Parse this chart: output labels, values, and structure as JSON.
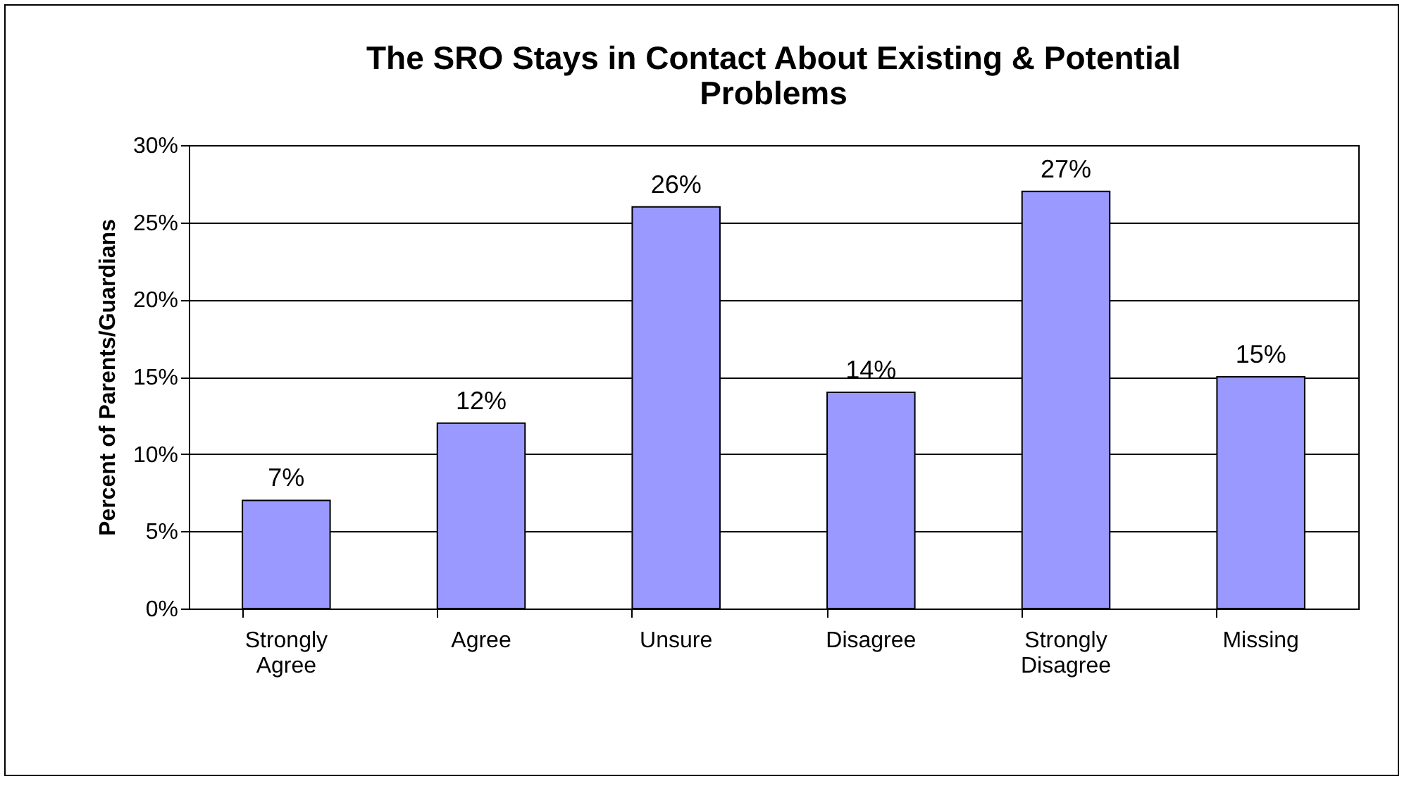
{
  "chart_data": {
    "type": "bar",
    "title": "The SRO Stays in Contact About Existing & Potential Problems",
    "ylabel": "Percent of Parents/Guardians",
    "categories": [
      "Strongly Agree",
      "Agree",
      "Unsure",
      "Disagree",
      "Strongly Disagree",
      "Missing"
    ],
    "values": [
      7,
      12,
      26,
      14,
      27,
      15
    ],
    "value_labels": [
      "7%",
      "12%",
      "26%",
      "14%",
      "27%",
      "15%"
    ],
    "color": "#9999ff",
    "ylim": [
      0,
      30
    ],
    "yticks": [
      {
        "value": 0,
        "label": "0%"
      },
      {
        "value": 5,
        "label": "5%"
      },
      {
        "value": 10,
        "label": "10%"
      },
      {
        "value": 15,
        "label": "15%"
      },
      {
        "value": 20,
        "label": "20%"
      },
      {
        "value": 25,
        "label": "25%"
      },
      {
        "value": 30,
        "label": "30%"
      }
    ],
    "grid": "y"
  }
}
